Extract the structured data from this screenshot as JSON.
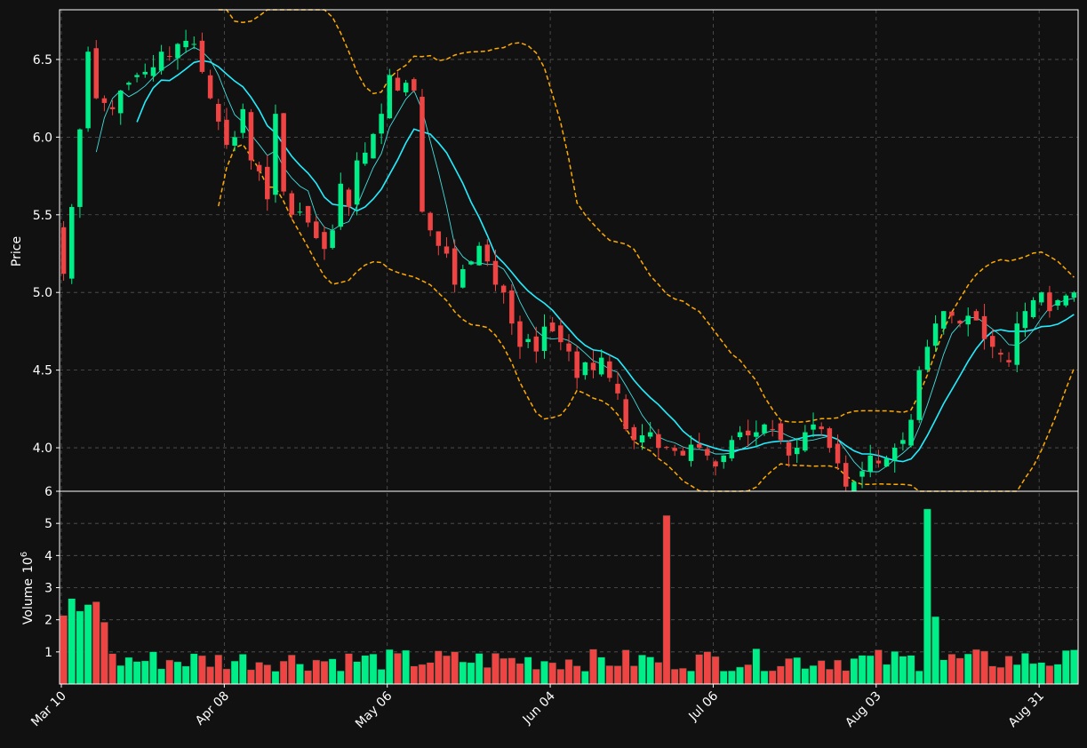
{
  "chart_data": {
    "type": "candlestick",
    "date_ticks": [
      "Mar 10",
      "Apr 08",
      "May 06",
      "Jun 04",
      "Jul 06",
      "Aug 03",
      "Aug 31"
    ],
    "price_panel": {
      "ylabel": "Price",
      "ylim": [
        3.72,
        6.82
      ],
      "ticks": [
        "4.0",
        "4.5",
        "5.0",
        "5.5",
        "6.0",
        "6.5"
      ]
    },
    "volume_panel": {
      "ylabel": "Volume",
      "ylabel_exp": "6",
      "ylim": [
        0,
        6.0
      ],
      "ticks": [
        "1",
        "2",
        "3",
        "4",
        "5",
        "6"
      ]
    },
    "grid": true,
    "colors": {
      "background": "#111111",
      "up": "#00ee88",
      "down": "#ee4444",
      "ma_fast": "#44dddd",
      "ma_slow": "#22eeff",
      "bands": "#ffaa00",
      "grid": "#555555"
    },
    "ohlc_close_estimate": [
      5.12,
      5.55,
      6.05,
      6.55,
      6.25,
      6.22,
      6.18,
      6.3,
      6.35,
      6.4,
      6.42,
      6.45,
      6.55,
      6.52,
      6.6,
      6.62,
      6.6,
      6.42,
      6.25,
      6.1,
      5.95,
      6.0,
      6.18,
      5.85,
      5.78,
      5.6,
      6.15,
      5.65,
      5.5,
      5.52,
      5.45,
      5.35,
      5.28,
      5.4,
      5.7,
      5.55,
      5.85,
      5.9,
      6.02,
      6.15,
      6.4,
      6.3,
      6.35,
      6.3,
      5.52,
      5.4,
      5.3,
      5.25,
      5.05,
      5.15,
      5.2,
      5.3,
      5.2,
      5.05,
      5.0,
      4.8,
      4.65,
      4.7,
      4.62,
      4.78,
      4.75,
      4.68,
      4.62,
      4.45,
      4.55,
      4.5,
      4.58,
      4.45,
      4.35,
      4.12,
      4.05,
      4.08,
      4.1,
      4.0,
      4.0,
      3.98,
      3.95,
      4.02,
      4.0,
      3.95,
      3.88,
      3.95,
      4.05,
      4.1,
      4.08,
      4.1,
      4.15,
      4.12,
      4.05,
      3.95,
      4.0,
      4.1,
      4.15,
      4.12,
      4.0,
      3.9,
      3.75,
      3.78,
      3.85,
      3.95,
      3.9,
      3.93,
      4.0,
      4.05,
      4.18,
      4.5,
      4.65,
      4.8,
      4.88,
      4.85,
      4.8,
      4.85,
      4.82,
      4.7,
      4.65,
      4.6,
      4.55,
      4.8,
      4.88,
      4.95,
      5.0,
      4.88,
      4.95,
      4.98,
      5.0
    ]
  }
}
